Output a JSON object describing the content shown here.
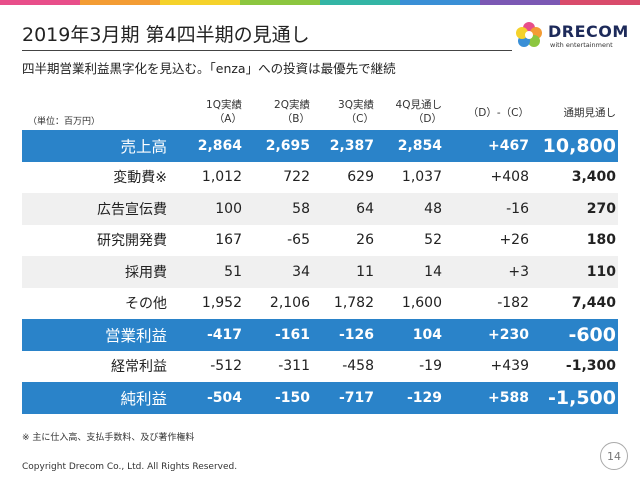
{
  "colors": {
    "rainbow": [
      "#e84e8a",
      "#f39c34",
      "#f5d22b",
      "#8cc63f",
      "#33b5a5",
      "#3a8fd6",
      "#7b58b4",
      "#d94b6b"
    ],
    "header_blue": "#2a83c9",
    "row_gray": "#f0f0f0"
  },
  "title": "2019年3月期 第4四半期の見通し",
  "subtitle": "四半期営業利益黒字化を見込む。「enza」への投資は最優先で継続",
  "logo": {
    "word": "DRECOM",
    "sub": "with entertainment",
    "icon": "flower-logo-icon"
  },
  "table": {
    "unit": "（単位：百万円）",
    "headers": {
      "q1": [
        "1Q実績",
        "（A）"
      ],
      "q2": [
        "2Q実績",
        "（B）"
      ],
      "q3": [
        "3Q実績",
        "（C）"
      ],
      "q4": [
        "4Q見通し",
        "（D）"
      ],
      "diff": "（D）-（C）",
      "total": "通期見通し"
    },
    "rows": [
      {
        "label": "売上高",
        "q1": "2,864",
        "q2": "2,695",
        "q3": "2,387",
        "q4": "2,854",
        "diff": "+467",
        "total": "10,800",
        "style": "blue"
      },
      {
        "label": "変動費※",
        "q1": "1,012",
        "q2": "722",
        "q3": "629",
        "q4": "1,037",
        "diff": "+408",
        "total": "3,400",
        "style": "white"
      },
      {
        "label": "広告宣伝費",
        "q1": "100",
        "q2": "58",
        "q3": "64",
        "q4": "48",
        "diff": "-16",
        "total": "270",
        "style": "gray"
      },
      {
        "label": "研究開発費",
        "q1": "167",
        "q2": "-65",
        "q3": "26",
        "q4": "52",
        "diff": "+26",
        "total": "180",
        "style": "white"
      },
      {
        "label": "採用費",
        "q1": "51",
        "q2": "34",
        "q3": "11",
        "q4": "14",
        "diff": "+3",
        "total": "110",
        "style": "gray"
      },
      {
        "label": "その他",
        "q1": "1,952",
        "q2": "2,106",
        "q3": "1,782",
        "q4": "1,600",
        "diff": "-182",
        "total": "7,440",
        "style": "white"
      },
      {
        "label": "営業利益",
        "q1": "-417",
        "q2": "-161",
        "q3": "-126",
        "q4": "104",
        "diff": "+230",
        "total": "-600",
        "style": "blue"
      },
      {
        "label": "経常利益",
        "q1": "-512",
        "q2": "-311",
        "q3": "-458",
        "q4": "-19",
        "diff": "+439",
        "total": "-1,300",
        "style": "white"
      },
      {
        "label": "純利益",
        "q1": "-504",
        "q2": "-150",
        "q3": "-717",
        "q4": "-129",
        "diff": "+588",
        "total": "-1,500",
        "style": "blue"
      }
    ]
  },
  "footnote": "※ 主に仕入高、支払手数料、及び著作権料",
  "copyright": "Copyright Drecom Co., Ltd. All Rights Reserved.",
  "page_number": "14"
}
